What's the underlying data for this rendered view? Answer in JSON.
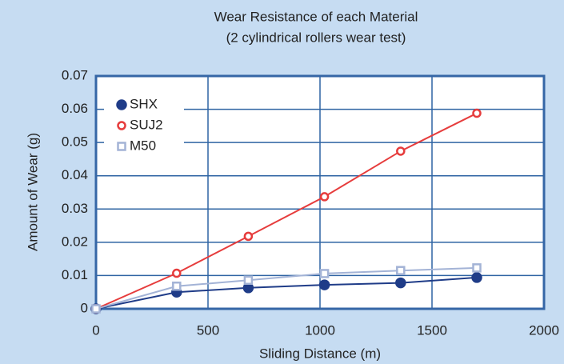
{
  "chart_data": {
    "type": "line",
    "title": [
      "Wear Resistance of each Material",
      "(2 cylindrical rollers wear test)"
    ],
    "xlabel": "Sliding Distance (m)",
    "ylabel": "Amount of Wear (g)",
    "x": [
      0,
      360,
      680,
      1020,
      1360,
      1700
    ],
    "series": [
      {
        "name": "SHX",
        "color": "#1f3c88",
        "marker": "filled-circle",
        "values": [
          0,
          0.005,
          0.0063,
          0.0072,
          0.0078,
          0.0094
        ]
      },
      {
        "name": "SUJ2",
        "color": "#e63c3c",
        "marker": "open-circle",
        "values": [
          0,
          0.0107,
          0.0218,
          0.0337,
          0.0474,
          0.0588
        ]
      },
      {
        "name": "M50",
        "color": "#a3b3d6",
        "marker": "open-square",
        "values": [
          0,
          0.0068,
          0.0086,
          0.0106,
          0.0115,
          0.0123
        ]
      }
    ],
    "xlim": [
      0,
      2000
    ],
    "xticks": [
      0,
      500,
      1000,
      1500,
      2000
    ],
    "ylim": [
      0,
      0.07
    ],
    "yticks": [
      0,
      0.01,
      0.02,
      0.03,
      0.04,
      0.05,
      0.06,
      0.07
    ],
    "grid": true,
    "legend": "upper left"
  }
}
